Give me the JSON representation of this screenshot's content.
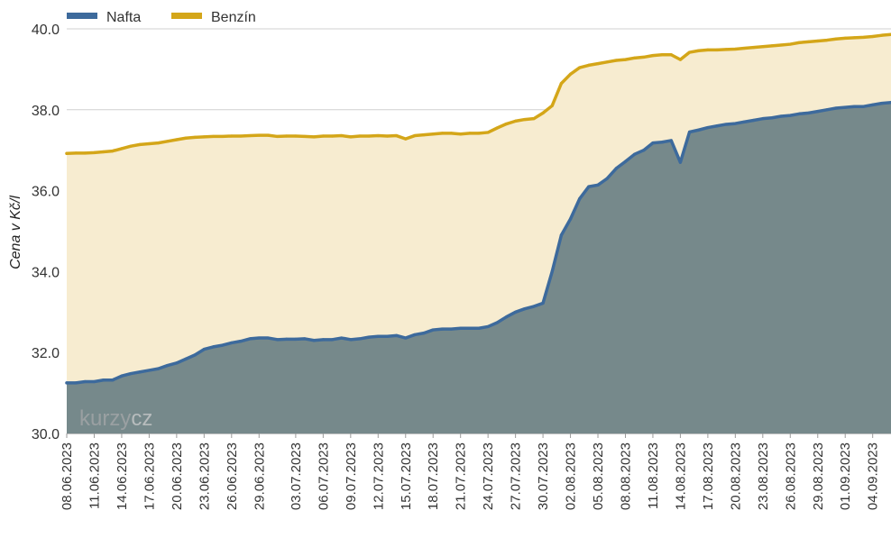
{
  "chart_data": {
    "type": "area",
    "ylabel": "Cena v Kč/l",
    "ylim": [
      30,
      40
    ],
    "yticks": [
      "30.0",
      "32.0",
      "34.0",
      "36.0",
      "38.0",
      "40.0"
    ],
    "legend_position": "top-left",
    "grid": true,
    "watermark": "kurzy.cz",
    "x_tick_labels": [
      "08.06.2023",
      "11.06.2023",
      "14.06.2023",
      "17.06.2023",
      "20.06.2023",
      "23.06.2023",
      "26.06.2023",
      "29.06.2023",
      "03.07.2023",
      "06.07.2023",
      "09.07.2023",
      "12.07.2023",
      "15.07.2023",
      "18.07.2023",
      "21.07.2023",
      "24.07.2023",
      "27.07.2023",
      "30.07.2023",
      "02.08.2023",
      "05.08.2023",
      "08.08.2023",
      "11.08.2023",
      "14.08.2023",
      "17.08.2023",
      "20.08.2023",
      "23.08.2023",
      "26.08.2023",
      "29.08.2023",
      "01.09.2023",
      "04.09.2023"
    ],
    "x": [
      "08.06.2023",
      "09.06.2023",
      "10.06.2023",
      "11.06.2023",
      "12.06.2023",
      "13.06.2023",
      "14.06.2023",
      "15.06.2023",
      "16.06.2023",
      "17.06.2023",
      "18.06.2023",
      "19.06.2023",
      "20.06.2023",
      "21.06.2023",
      "22.06.2023",
      "23.06.2023",
      "24.06.2023",
      "25.06.2023",
      "26.06.2023",
      "27.06.2023",
      "28.06.2023",
      "29.06.2023",
      "30.06.2023",
      "01.07.2023",
      "02.07.2023",
      "03.07.2023",
      "04.07.2023",
      "05.07.2023",
      "06.07.2023",
      "07.07.2023",
      "08.07.2023",
      "09.07.2023",
      "10.07.2023",
      "11.07.2023",
      "12.07.2023",
      "13.07.2023",
      "14.07.2023",
      "15.07.2023",
      "16.07.2023",
      "17.07.2023",
      "18.07.2023",
      "19.07.2023",
      "20.07.2023",
      "21.07.2023",
      "22.07.2023",
      "23.07.2023",
      "24.07.2023",
      "25.07.2023",
      "26.07.2023",
      "27.07.2023",
      "28.07.2023",
      "29.07.2023",
      "30.07.2023",
      "31.07.2023",
      "01.08.2023",
      "02.08.2023",
      "03.08.2023",
      "04.08.2023",
      "05.08.2023",
      "06.08.2023",
      "07.08.2023",
      "08.08.2023",
      "09.08.2023",
      "10.08.2023",
      "11.08.2023",
      "12.08.2023",
      "13.08.2023",
      "14.08.2023",
      "15.08.2023",
      "16.08.2023",
      "17.08.2023",
      "18.08.2023",
      "19.08.2023",
      "20.08.2023",
      "21.08.2023",
      "22.08.2023",
      "23.08.2023",
      "24.08.2023",
      "25.08.2023",
      "26.08.2023",
      "27.08.2023",
      "28.08.2023",
      "29.08.2023",
      "30.08.2023",
      "31.08.2023",
      "01.09.2023",
      "02.09.2023",
      "03.09.2023",
      "04.09.2023",
      "05.09.2023",
      "06.09.2023"
    ],
    "series": [
      {
        "name": "Nafta",
        "color": "#3d6a9c",
        "fill": "#76898b",
        "values": [
          31.25,
          31.25,
          31.28,
          31.28,
          31.32,
          31.32,
          31.42,
          31.48,
          31.52,
          31.56,
          31.6,
          31.68,
          31.74,
          31.84,
          31.94,
          32.08,
          32.14,
          32.18,
          32.24,
          32.28,
          32.34,
          32.36,
          32.36,
          32.32,
          32.33,
          32.33,
          32.34,
          32.3,
          32.32,
          32.32,
          32.36,
          32.32,
          32.34,
          32.38,
          32.4,
          32.4,
          32.42,
          32.36,
          32.44,
          32.48,
          32.56,
          32.58,
          32.58,
          32.6,
          32.6,
          32.6,
          32.64,
          32.74,
          32.88,
          33.0,
          33.08,
          33.14,
          33.22,
          34.0,
          34.9,
          35.3,
          35.8,
          36.1,
          36.14,
          36.3,
          36.55,
          36.72,
          36.9,
          37.0,
          37.18,
          37.2,
          37.24,
          36.7,
          37.45,
          37.5,
          37.56,
          37.6,
          37.64,
          37.66,
          37.7,
          37.74,
          37.78,
          37.8,
          37.84,
          37.86,
          37.9,
          37.92,
          37.96,
          38.0,
          38.04,
          38.06,
          38.08,
          38.08,
          38.12,
          38.16,
          38.18
        ]
      },
      {
        "name": "Benzín",
        "color": "#d4a619",
        "fill": "#f7ecd0",
        "values": [
          36.92,
          36.93,
          36.93,
          36.94,
          36.96,
          36.98,
          37.04,
          37.1,
          37.14,
          37.16,
          37.18,
          37.22,
          37.26,
          37.3,
          37.32,
          37.33,
          37.34,
          37.34,
          37.35,
          37.35,
          37.36,
          37.37,
          37.37,
          37.34,
          37.35,
          37.35,
          37.34,
          37.33,
          37.35,
          37.35,
          37.36,
          37.33,
          37.35,
          37.35,
          37.36,
          37.35,
          37.36,
          37.28,
          37.36,
          37.38,
          37.4,
          37.42,
          37.42,
          37.4,
          37.42,
          37.42,
          37.44,
          37.55,
          37.65,
          37.72,
          37.76,
          37.78,
          37.92,
          38.1,
          38.65,
          38.88,
          39.04,
          39.1,
          39.14,
          39.18,
          39.22,
          39.24,
          39.28,
          39.3,
          39.34,
          39.36,
          39.36,
          39.24,
          39.42,
          39.46,
          39.48,
          39.48,
          39.49,
          39.5,
          39.52,
          39.54,
          39.56,
          39.58,
          39.6,
          39.62,
          39.66,
          39.68,
          39.7,
          39.72,
          39.75,
          39.77,
          39.78,
          39.79,
          39.81,
          39.84,
          39.86
        ]
      }
    ]
  }
}
